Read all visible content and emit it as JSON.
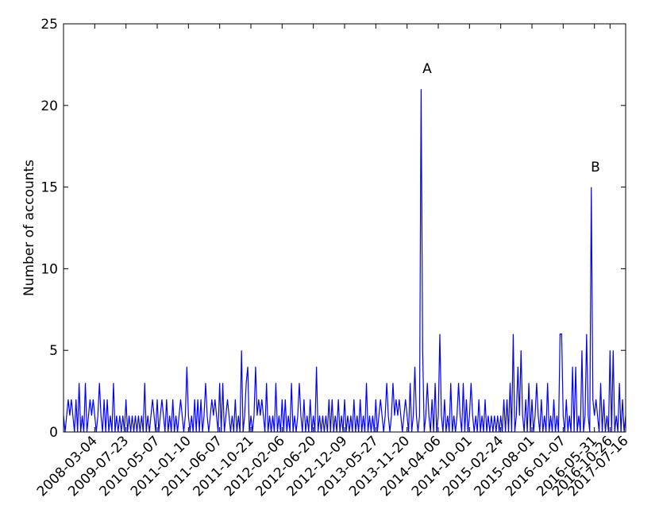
{
  "chart_data": {
    "type": "line",
    "ylabel": "Number of accounts",
    "annotations": [
      "A",
      "B"
    ],
    "color": "#0000ff",
    "xlim": [
      0,
      360
    ],
    "xticks": [
      {
        "value": 20,
        "label": "2008-03-04"
      },
      {
        "value": 40,
        "label": "2009-07-23"
      },
      {
        "value": 60,
        "label": "2010-05-07"
      },
      {
        "value": 80,
        "label": "2011-01-10"
      },
      {
        "value": 100,
        "label": "2011-06-07"
      },
      {
        "value": 120,
        "label": "2011-10-21"
      },
      {
        "value": 140,
        "label": "2012-02-06"
      },
      {
        "value": 160,
        "label": "2012-06-20"
      },
      {
        "value": 180,
        "label": "2012-12-09"
      },
      {
        "value": 200,
        "label": "2013-05-27"
      },
      {
        "value": 220,
        "label": "2013-11-20"
      },
      {
        "value": 240,
        "label": "2014-04-06"
      },
      {
        "value": 260,
        "label": "2014-10-01"
      },
      {
        "value": 280,
        "label": "2015-02-24"
      },
      {
        "value": 300,
        "label": "2015-08-01"
      },
      {
        "value": 320,
        "label": "2016-01-07"
      },
      {
        "value": 340,
        "label": "2016-05-31"
      },
      {
        "value": 350,
        "label": "2016-10-26"
      },
      {
        "value": 360,
        "label": "2017-07-16"
      }
    ],
    "ylim": [
      0,
      25
    ],
    "yticks": [
      0,
      5,
      10,
      15,
      20,
      25
    ],
    "x": [
      0,
      1,
      2,
      3,
      4,
      5,
      6,
      7,
      8,
      9,
      10,
      11,
      12,
      13,
      14,
      15,
      16,
      17,
      18,
      19,
      20,
      21,
      22,
      23,
      24,
      25,
      26,
      27,
      28,
      29,
      30,
      31,
      32,
      33,
      34,
      35,
      36,
      37,
      38,
      39,
      40,
      41,
      42,
      43,
      44,
      45,
      46,
      47,
      48,
      49,
      50,
      51,
      52,
      53,
      54,
      55,
      56,
      57,
      58,
      59,
      60,
      61,
      62,
      63,
      64,
      65,
      66,
      67,
      68,
      69,
      70,
      71,
      72,
      73,
      74,
      75,
      76,
      77,
      78,
      79,
      80,
      81,
      82,
      83,
      84,
      85,
      86,
      87,
      88,
      89,
      90,
      91,
      92,
      93,
      94,
      95,
      96,
      97,
      98,
      99,
      100,
      101,
      102,
      103,
      104,
      105,
      106,
      107,
      108,
      109,
      110,
      111,
      112,
      113,
      114,
      115,
      116,
      117,
      118,
      119,
      120,
      121,
      122,
      123,
      124,
      125,
      126,
      127,
      128,
      129,
      130,
      131,
      132,
      133,
      134,
      135,
      136,
      137,
      138,
      139,
      140,
      141,
      142,
      143,
      144,
      145,
      146,
      147,
      148,
      149,
      150,
      151,
      152,
      153,
      154,
      155,
      156,
      157,
      158,
      159,
      160,
      161,
      162,
      163,
      164,
      165,
      166,
      167,
      168,
      169,
      170,
      171,
      172,
      173,
      174,
      175,
      176,
      177,
      178,
      179,
      180,
      181,
      182,
      183,
      184,
      185,
      186,
      187,
      188,
      189,
      190,
      191,
      192,
      193,
      194,
      195,
      196,
      197,
      198,
      199,
      200,
      201,
      202,
      203,
      204,
      205,
      206,
      207,
      208,
      209,
      210,
      211,
      212,
      213,
      214,
      215,
      216,
      217,
      218,
      219,
      220,
      221,
      222,
      223,
      224,
      225,
      226,
      227,
      228,
      229,
      230,
      231,
      232,
      233,
      234,
      235,
      236,
      237,
      238,
      239,
      240,
      241,
      242,
      243,
      244,
      245,
      246,
      247,
      248,
      249,
      250,
      251,
      252,
      253,
      254,
      255,
      256,
      257,
      258,
      259,
      260,
      261,
      262,
      263,
      264,
      265,
      266,
      267,
      268,
      269,
      270,
      271,
      272,
      273,
      274,
      275,
      276,
      277,
      278,
      279,
      280,
      281,
      282,
      283,
      284,
      285,
      286,
      287,
      288,
      289,
      290,
      291,
      292,
      293,
      294,
      295,
      296,
      297,
      298,
      299,
      300,
      301,
      302,
      303,
      304,
      305,
      306,
      307,
      308,
      309,
      310,
      311,
      312,
      313,
      314,
      315,
      316,
      317,
      318,
      319,
      320,
      321,
      322,
      323,
      324,
      325,
      326,
      327,
      328,
      329,
      330,
      331,
      332,
      333,
      334,
      335,
      336,
      337,
      338,
      339,
      340,
      341,
      342,
      343,
      344,
      345,
      346,
      347,
      348,
      349,
      350,
      351,
      352,
      353,
      354,
      355,
      356,
      357,
      358,
      359,
      360
    ],
    "values": [
      1,
      0,
      1,
      2,
      1,
      2,
      1,
      0,
      2,
      0,
      3,
      0,
      1,
      0,
      3,
      0,
      1,
      2,
      1,
      2,
      1,
      0,
      1,
      3,
      1,
      0,
      2,
      0,
      2,
      0,
      1,
      0,
      3,
      0,
      1,
      0,
      1,
      0,
      1,
      0,
      2,
      0,
      1,
      0,
      1,
      0,
      1,
      0,
      1,
      0,
      1,
      0,
      3,
      0,
      1,
      0,
      1,
      2,
      1,
      0,
      2,
      0,
      1,
      2,
      1,
      0,
      2,
      0,
      1,
      0,
      2,
      0,
      1,
      0,
      1,
      2,
      1,
      0,
      1,
      4,
      1,
      0,
      1,
      0,
      2,
      0,
      2,
      0,
      2,
      0,
      1,
      3,
      1,
      0,
      1,
      2,
      1,
      2,
      1,
      0,
      3,
      0,
      3,
      0,
      1,
      2,
      1,
      0,
      1,
      0,
      2,
      0,
      1,
      0,
      5,
      0,
      1,
      3,
      4,
      0,
      1,
      0,
      1,
      4,
      1,
      2,
      1,
      2,
      1,
      0,
      3,
      0,
      1,
      0,
      1,
      0,
      3,
      0,
      1,
      0,
      2,
      0,
      2,
      0,
      1,
      0,
      3,
      0,
      1,
      0,
      1,
      3,
      1,
      0,
      2,
      0,
      1,
      0,
      2,
      0,
      1,
      0,
      4,
      0,
      1,
      0,
      1,
      0,
      1,
      0,
      2,
      0,
      2,
      0,
      1,
      0,
      2,
      0,
      1,
      0,
      2,
      0,
      1,
      0,
      1,
      0,
      2,
      0,
      1,
      0,
      2,
      0,
      1,
      0,
      3,
      0,
      1,
      0,
      1,
      0,
      2,
      0,
      1,
      2,
      1,
      0,
      1,
      3,
      1,
      0,
      1,
      3,
      1,
      2,
      1,
      2,
      1,
      0,
      1,
      2,
      1,
      0,
      3,
      0,
      1,
      4,
      1,
      0,
      1,
      21,
      5,
      0,
      1,
      3,
      1,
      0,
      2,
      0,
      3,
      0,
      1,
      6,
      1,
      0,
      2,
      0,
      1,
      0,
      3,
      0,
      1,
      0,
      1,
      3,
      1,
      0,
      3,
      0,
      2,
      0,
      1,
      3,
      1,
      0,
      1,
      0,
      2,
      0,
      1,
      0,
      2,
      0,
      1,
      0,
      1,
      0,
      1,
      0,
      1,
      0,
      1,
      0,
      2,
      0,
      2,
      0,
      3,
      0,
      6,
      0,
      1,
      4,
      1,
      5,
      1,
      0,
      2,
      0,
      3,
      0,
      2,
      0,
      1,
      3,
      1,
      0,
      2,
      0,
      1,
      0,
      3,
      0,
      1,
      0,
      2,
      0,
      1,
      0,
      6,
      6,
      1,
      0,
      2,
      0,
      1,
      0,
      4,
      0,
      4,
      0,
      1,
      0,
      5,
      0,
      1,
      6,
      1,
      0,
      15,
      2,
      1,
      2,
      1,
      0,
      3,
      0,
      2,
      0,
      1,
      0,
      5,
      0,
      5,
      0,
      1,
      0,
      3,
      0,
      2,
      0,
      1
    ]
  }
}
